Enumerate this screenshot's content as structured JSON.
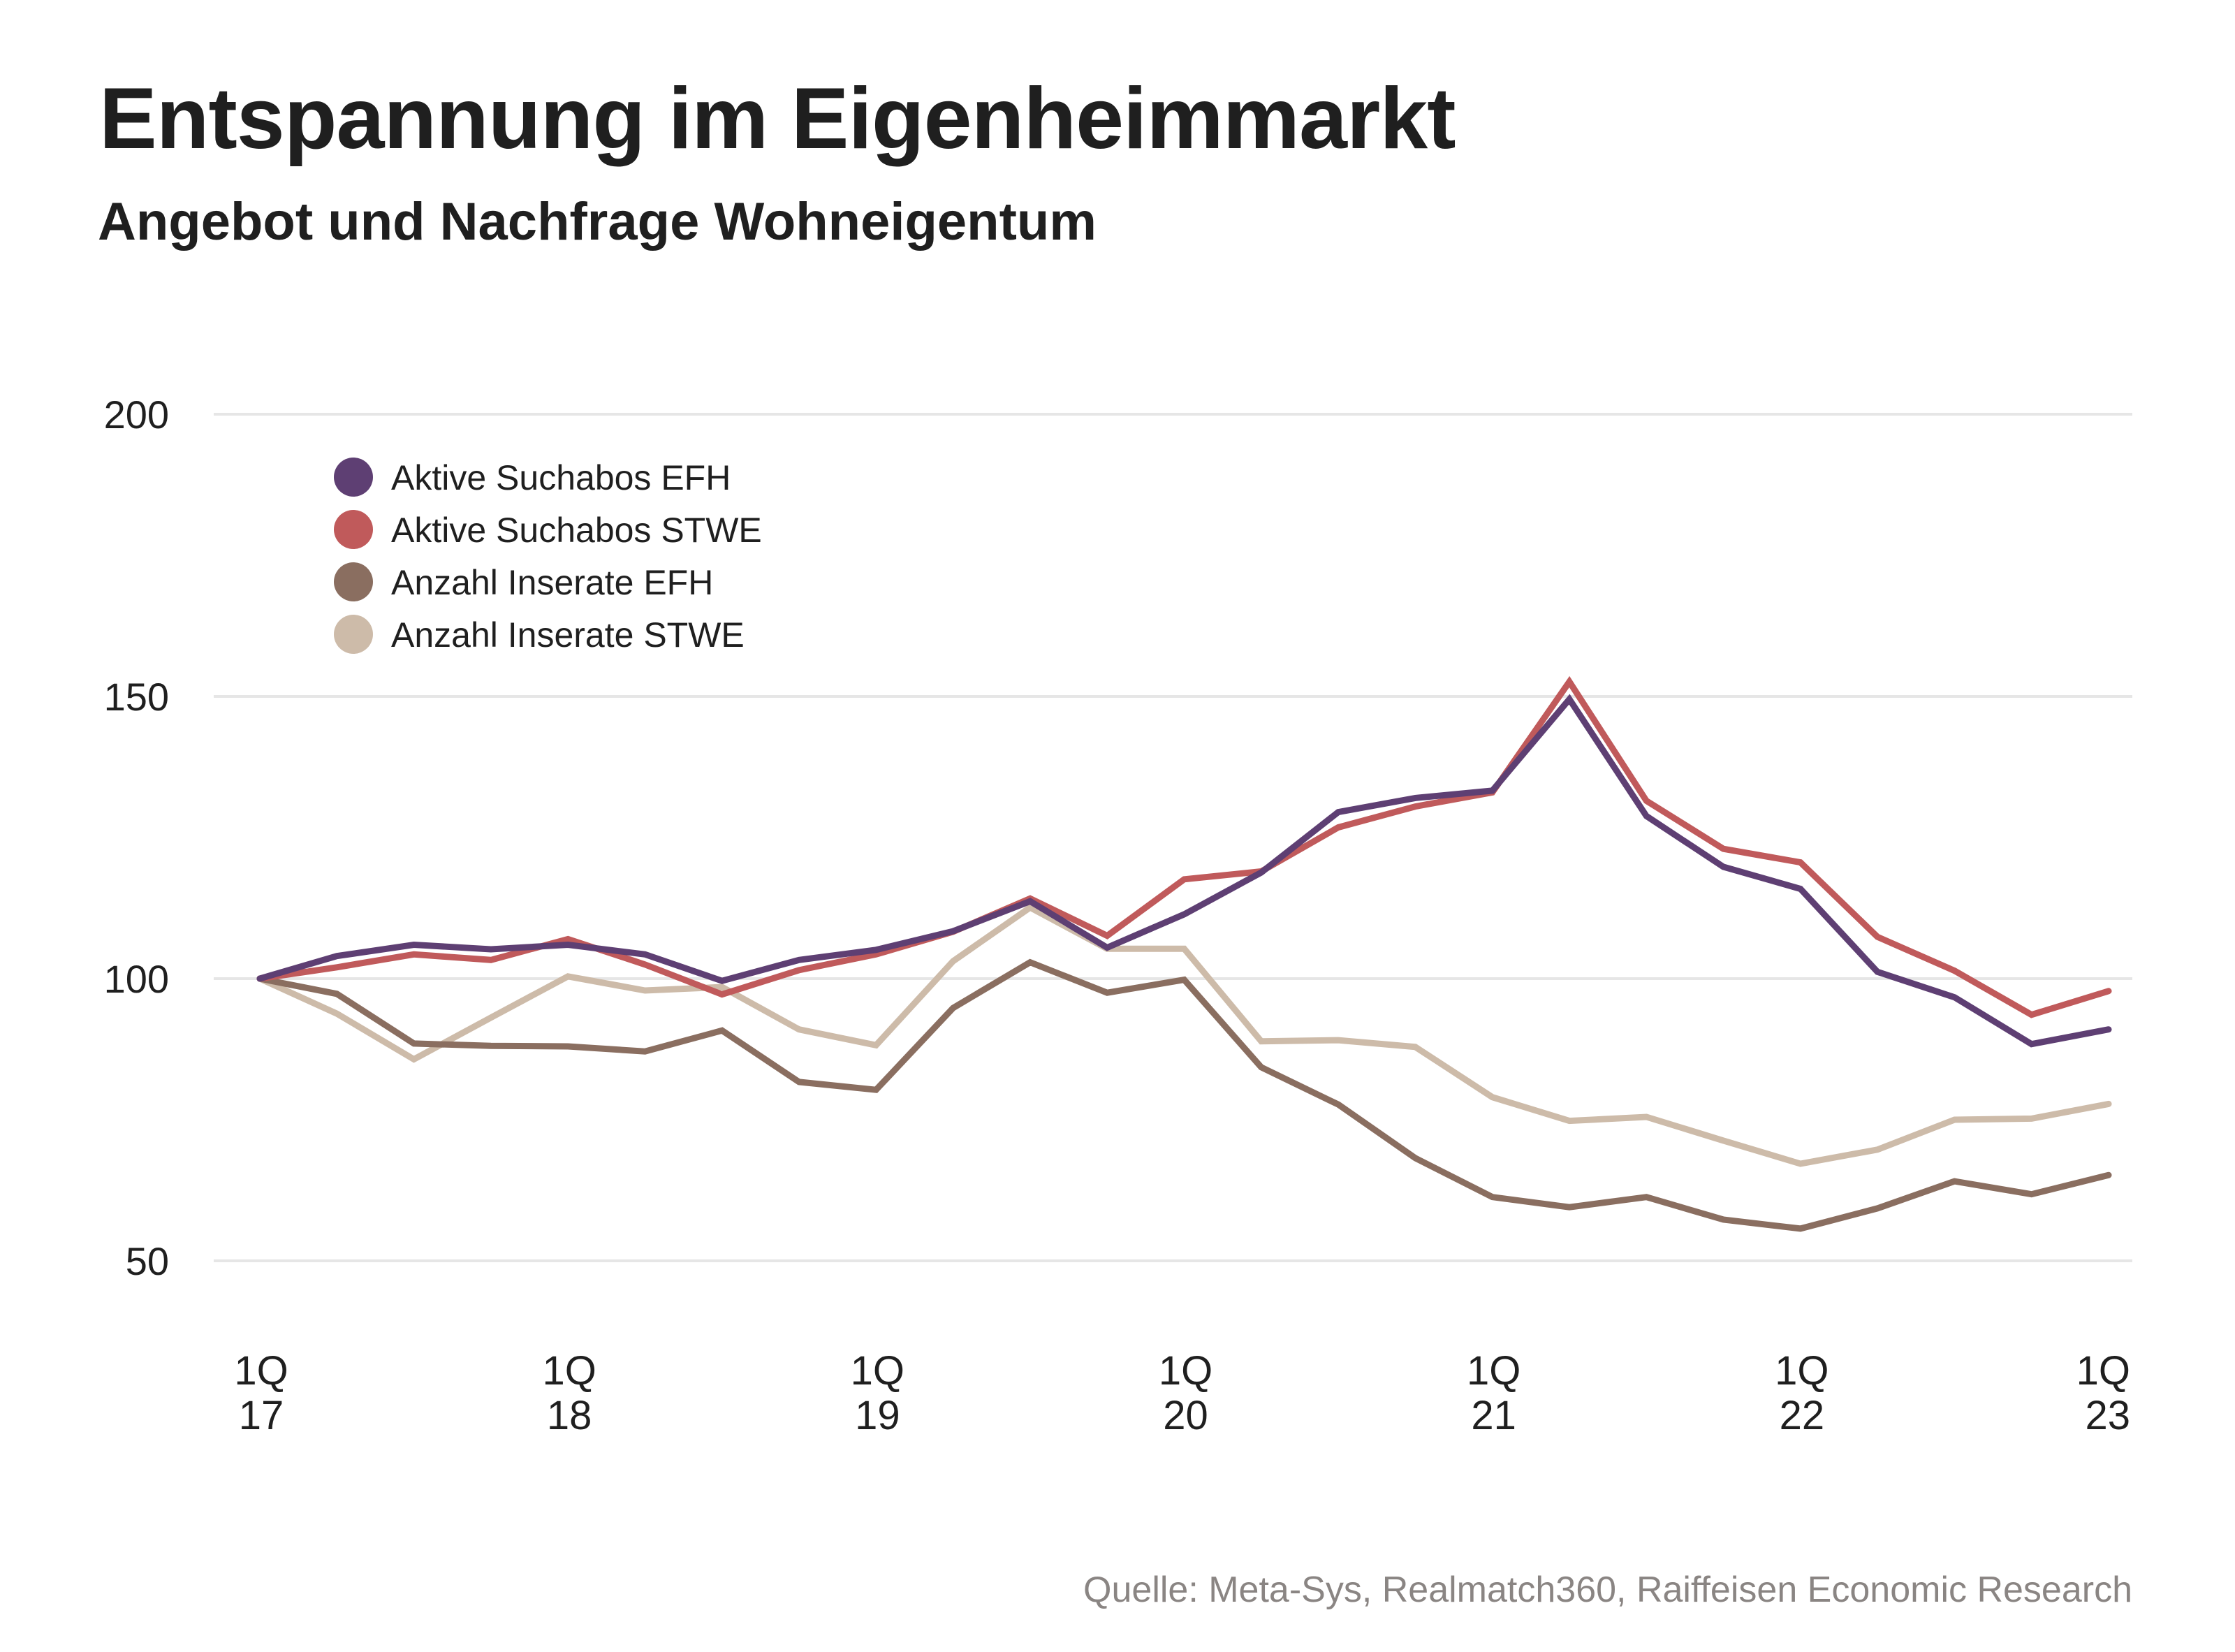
{
  "header": {
    "title": "Entspannung im Eigenheimmarkt",
    "subtitle": "Angebot und Nachfrage Wohneigentum"
  },
  "footer": {
    "source": "Quelle: Meta-Sys, Realmatch360, Raiffeisen Economic Research"
  },
  "chart_data": {
    "type": "line",
    "title": "Entspannung im Eigenheimmarkt",
    "subtitle": "Angebot und Nachfrage Wohneigentum",
    "xlabel": "",
    "ylabel": "",
    "ylim": [
      50,
      200
    ],
    "yticks": [
      200,
      150,
      100,
      50
    ],
    "grid": true,
    "legend_position": "top-left",
    "x": [
      "1Q17",
      "2Q17",
      "3Q17",
      "4Q17",
      "1Q18",
      "2Q18",
      "3Q18",
      "4Q18",
      "1Q19",
      "2Q19",
      "3Q19",
      "4Q19",
      "1Q20",
      "2Q20",
      "3Q20",
      "4Q20",
      "1Q21",
      "2Q21",
      "3Q21",
      "4Q21",
      "1Q22",
      "2Q22",
      "3Q22",
      "4Q22",
      "1Q23"
    ],
    "xtick_labels": [
      {
        "index": 0,
        "line1": "1Q",
        "line2": "17"
      },
      {
        "index": 4,
        "line1": "1Q",
        "line2": "18"
      },
      {
        "index": 8,
        "line1": "1Q",
        "line2": "19"
      },
      {
        "index": 12,
        "line1": "1Q",
        "line2": "20"
      },
      {
        "index": 16,
        "line1": "1Q",
        "line2": "21"
      },
      {
        "index": 20,
        "line1": "1Q",
        "line2": "22"
      },
      {
        "index": 24,
        "line1": "1Q",
        "line2": "23"
      }
    ],
    "series": [
      {
        "name": "Aktive Suchabos EFH",
        "color": "#5e3f73",
        "values": [
          100,
          104,
          106,
          105.2,
          106,
          104.3,
          99.6,
          103.3,
          105.1,
          108.4,
          113.7,
          105.5,
          111.4,
          118.8,
          129.5,
          132,
          133.3,
          149.5,
          128.8,
          119.8,
          115.9,
          101.2,
          96.7,
          88.4,
          91
        ]
      },
      {
        "name": "Aktive Suchabos STWE",
        "color": "#c05a5b",
        "values": [
          100,
          102,
          104.3,
          103.3,
          107,
          102.5,
          97.2,
          101.5,
          104.3,
          108.3,
          114.2,
          107.6,
          117.6,
          119,
          126.8,
          130.5,
          133,
          152.6,
          131.5,
          123,
          120.6,
          107.4,
          101.4,
          93.6,
          97.8
        ]
      },
      {
        "name": "Anzahl Inserate EFH",
        "color": "#8a6e60",
        "values": [
          100,
          97.3,
          88.5,
          88.1,
          88,
          87.1,
          90.8,
          81.7,
          80.3,
          94.8,
          102.9,
          97.5,
          99.8,
          84.3,
          77.7,
          68.2,
          61.3,
          59.5,
          61.3,
          57.3,
          55.7,
          59.3,
          64.1,
          61.8,
          65.2
        ]
      },
      {
        "name": "Anzahl Inserate STWE",
        "color": "#cdbba9",
        "values": [
          100,
          93.8,
          85.7,
          93.1,
          100.4,
          97.9,
          98.5,
          91,
          88.2,
          103.1,
          112.6,
          105.3,
          105.3,
          88.9,
          89.1,
          87.9,
          79,
          74.8,
          75.5,
          71.3,
          67.2,
          69.7,
          75,
          75.2,
          77.8
        ]
      }
    ]
  }
}
